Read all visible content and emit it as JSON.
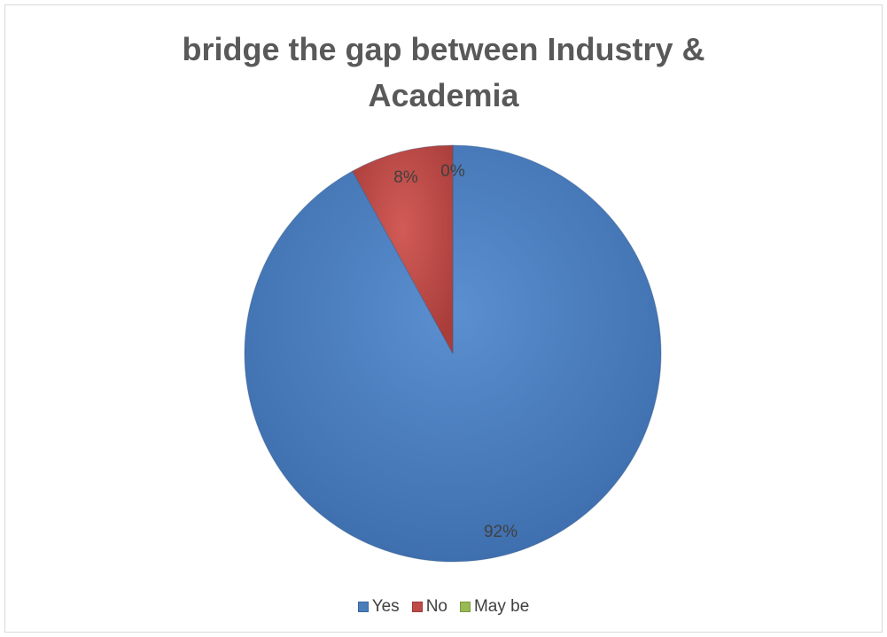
{
  "chart_data": {
    "type": "pie",
    "title_lines": [
      "bridge the gap between Industry &",
      "Academia"
    ],
    "slices": [
      {
        "name": "Yes",
        "value": 92,
        "label": "92%",
        "color": "#4a7ebb"
      },
      {
        "name": "No",
        "value": 8,
        "label": "8%",
        "color": "#be4b48"
      },
      {
        "name": "May be",
        "value": 0,
        "label": "0%",
        "color": "#98b954"
      }
    ],
    "legend_position": "bottom",
    "data_labels": true
  }
}
